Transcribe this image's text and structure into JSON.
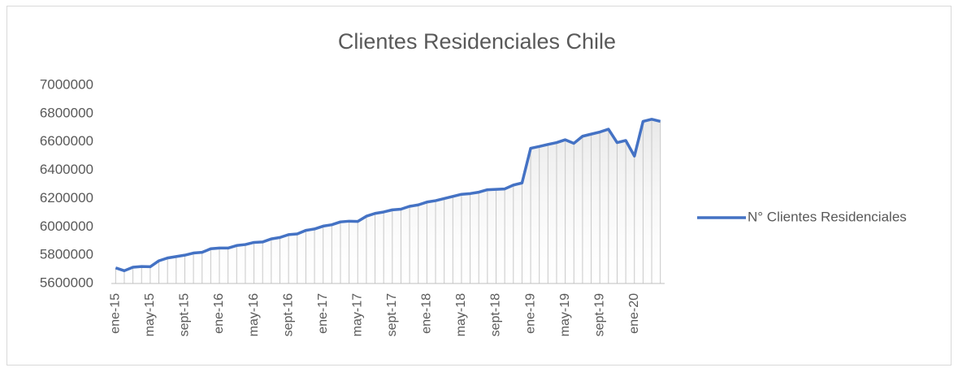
{
  "chart_data": {
    "type": "line",
    "title": "Clientes Residenciales Chile",
    "categories": [
      "ene-15",
      null,
      null,
      null,
      "may-15",
      null,
      null,
      null,
      "sept-15",
      null,
      null,
      null,
      "ene-16",
      null,
      null,
      null,
      "may-16",
      null,
      null,
      null,
      "sept-16",
      null,
      null,
      null,
      "ene-17",
      null,
      null,
      null,
      "may-17",
      null,
      null,
      null,
      "sept-17",
      null,
      null,
      null,
      "ene-18",
      null,
      null,
      null,
      "may-18",
      null,
      null,
      null,
      "sept-18",
      null,
      null,
      null,
      "ene-19",
      null,
      null,
      null,
      "may-19",
      null,
      null,
      null,
      "sept-19",
      null,
      null,
      null,
      "ene-20",
      null,
      null,
      null
    ],
    "series": [
      {
        "name": "N° Clientes Residenciales",
        "color": "#4472c4",
        "values": [
          5710000,
          5690000,
          5715000,
          5720000,
          5718000,
          5760000,
          5780000,
          5790000,
          5800000,
          5815000,
          5820000,
          5845000,
          5850000,
          5850000,
          5868000,
          5875000,
          5890000,
          5893000,
          5915000,
          5925000,
          5945000,
          5950000,
          5975000,
          5985000,
          6005000,
          6015000,
          6035000,
          6040000,
          6038000,
          6075000,
          6095000,
          6105000,
          6120000,
          6125000,
          6145000,
          6155000,
          6175000,
          6185000,
          6200000,
          6215000,
          6230000,
          6235000,
          6245000,
          6262000,
          6265000,
          6268000,
          6295000,
          6310000,
          6555000,
          6568000,
          6582000,
          6595000,
          6615000,
          6590000,
          6640000,
          6655000,
          6670000,
          6690000,
          6595000,
          6610000,
          6500000,
          6745000,
          6760000,
          6745000
        ]
      }
    ],
    "ylim": [
      5600000,
      7000000
    ],
    "yticks": [
      5600000,
      5800000,
      6000000,
      6200000,
      6400000,
      6600000,
      6800000,
      7000000
    ],
    "grid": false,
    "drop_lines": true,
    "legend": "right"
  }
}
